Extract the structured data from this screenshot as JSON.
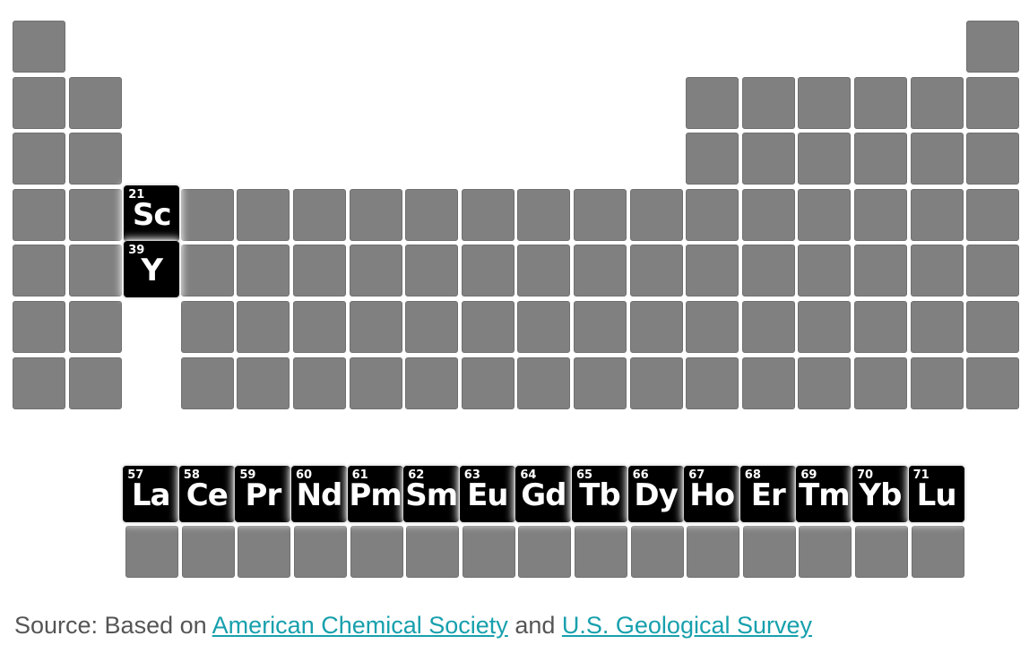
{
  "highlighted": [
    {
      "number": 21,
      "symbol": "Sc"
    },
    {
      "number": 39,
      "symbol": "Y"
    }
  ],
  "lanthanides": [
    {
      "number": 57,
      "symbol": "La"
    },
    {
      "number": 58,
      "symbol": "Ce"
    },
    {
      "number": 59,
      "symbol": "Pr"
    },
    {
      "number": 60,
      "symbol": "Nd"
    },
    {
      "number": 61,
      "symbol": "Pm"
    },
    {
      "number": 62,
      "symbol": "Sm"
    },
    {
      "number": 63,
      "symbol": "Eu"
    },
    {
      "number": 64,
      "symbol": "Gd"
    },
    {
      "number": 65,
      "symbol": "Tb"
    },
    {
      "number": 66,
      "symbol": "Dy"
    },
    {
      "number": 67,
      "symbol": "Ho"
    },
    {
      "number": 68,
      "symbol": "Er"
    },
    {
      "number": 69,
      "symbol": "Tm"
    },
    {
      "number": 70,
      "symbol": "Yb"
    },
    {
      "number": 71,
      "symbol": "Lu"
    }
  ],
  "footer": {
    "prefix": "Source: Based on",
    "link1": "American Chemical Society",
    "conjunction": "and",
    "link2": "U.S. Geological Survey"
  }
}
